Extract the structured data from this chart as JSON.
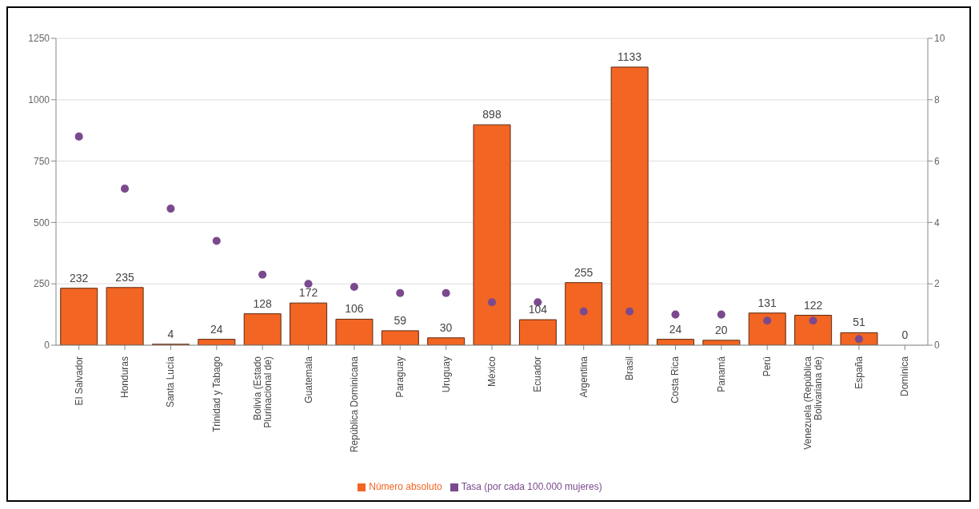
{
  "chart_data": {
    "type": "bar",
    "categories": [
      "El Salvador",
      "Honduras",
      "Santa Lucía",
      "Trinidad y Tabago",
      "Bolivia (Estado Plurinacional de)",
      "Guatemala",
      "República Dominicana",
      "Paraguay",
      "Uruguay",
      "México",
      "Ecuador",
      "Argentina",
      "Brasil",
      "Costa Rica",
      "Panamá",
      "Perú",
      "Venezuela (República Bolivariana de)",
      "España",
      "Dominica"
    ],
    "series": [
      {
        "name": "Número absoluto",
        "color": "#f26522",
        "values": [
          232,
          235,
          4,
          24,
          128,
          172,
          106,
          59,
          30,
          898,
          104,
          255,
          1133,
          24,
          20,
          131,
          122,
          51,
          0
        ],
        "value_labels": [
          "232",
          "235",
          "4",
          "24",
          "128",
          "172",
          "106",
          "59",
          "30",
          "898",
          "104",
          "255",
          "1133",
          "24",
          "20",
          "131",
          "122",
          "51",
          "0"
        ]
      },
      {
        "name": "Tasa (por cada 100.000 mujeres)",
        "type": "scatter",
        "axis": "y2",
        "color": "#7b4a8e",
        "values": [
          6.8,
          5.1,
          4.45,
          3.4,
          2.3,
          2.0,
          1.9,
          1.7,
          1.7,
          1.4,
          1.4,
          1.1,
          1.1,
          1.0,
          1.0,
          0.8,
          0.8,
          0.2,
          null
        ]
      }
    ],
    "ylim": [
      0,
      1250
    ],
    "yticks": [
      0,
      250,
      500,
      750,
      1000,
      1250
    ],
    "y2lim": [
      0,
      10
    ],
    "y2ticks": [
      0,
      2,
      4,
      6,
      8,
      10
    ],
    "grid": "y",
    "legend": "bottom",
    "marker": "circle"
  }
}
